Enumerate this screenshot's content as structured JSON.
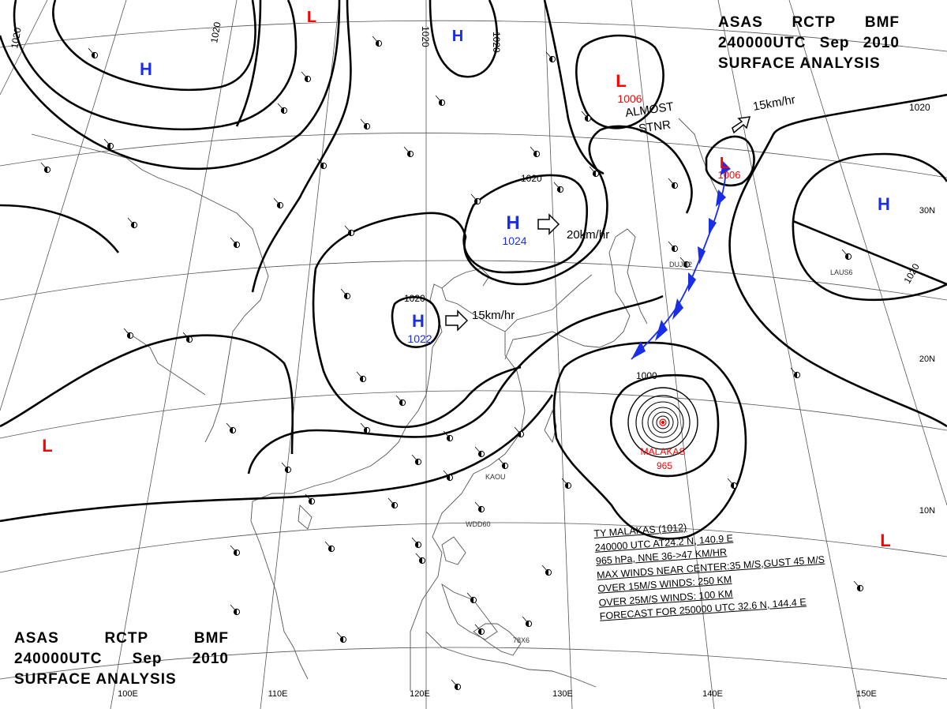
{
  "header": {
    "agency": "ASAS",
    "station": "RCTP",
    "office": "BMF",
    "time": "240000UTC",
    "month": "Sep",
    "year": "2010",
    "title": "SURFACE ANALYSIS"
  },
  "pressure_centers": [
    {
      "type": "H",
      "value": "1024"
    },
    {
      "type": "H",
      "value": "1022"
    },
    {
      "type": "L",
      "value": "1006"
    },
    {
      "type": "L",
      "value": "1006"
    },
    {
      "type": "H",
      "value": ""
    },
    {
      "type": "H",
      "value": ""
    },
    {
      "type": "H",
      "value": ""
    },
    {
      "type": "L",
      "value": ""
    },
    {
      "type": "L",
      "value": ""
    },
    {
      "type": "L",
      "value": ""
    }
  ],
  "isobar_labels": [
    "1020",
    "1020",
    "1020",
    "1020",
    "1020",
    "1020",
    "1020",
    "1020",
    "1000"
  ],
  "motions": {
    "high_east": "20km/hr",
    "high_china": "15km/hr",
    "low_ne": "15km/hr",
    "low_stationary": "ALMOST",
    "low_stationary_2": "STNR"
  },
  "typhoon": {
    "name": "MALAKAS",
    "pressure": "965",
    "info": [
      "TY  MALAKAS  (1012)",
      "240000 UTC  AT24.2 N, 140.9 E",
      "965 hPa, NNE  36->47 KM/HR",
      "MAX WINDS NEAR CENTER:35 M/S,GUST 45 M/S",
      "OVER 15M/S WINDS: 250 KM",
      "OVER 25M/S WINDS: 100 KM",
      "FORECAST FOR 250000 UTC 32.6 N, 144.4 E"
    ]
  },
  "graticule": {
    "lon_labels": [
      "100E",
      "110E",
      "120E",
      "130E",
      "140E",
      "150E"
    ],
    "lat_labels": [
      "30N",
      "20N",
      "10N"
    ]
  },
  "station_ids": [
    "DUJN2",
    "LAUS6",
    "KAOU",
    "WDD60",
    "78X6"
  ],
  "colors": {
    "high": "#1a2ee8",
    "low": "#ff0000",
    "front": "#1a2ee8",
    "isobar": "#000000",
    "coast": "#555555"
  }
}
